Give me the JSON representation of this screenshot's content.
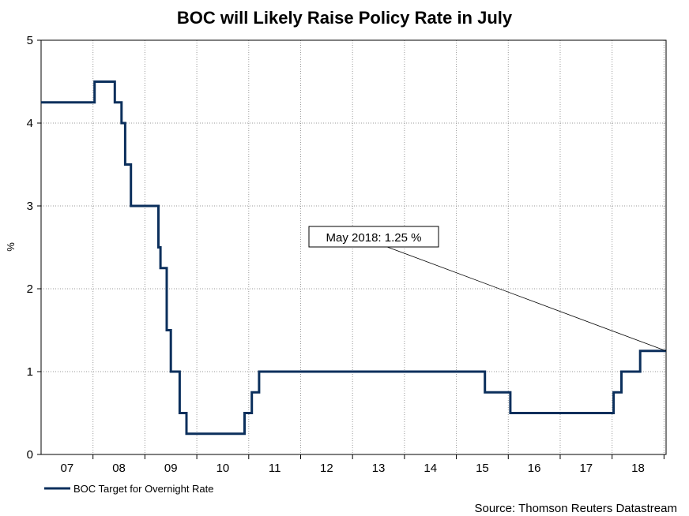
{
  "chart_data": {
    "type": "line",
    "title": "BOC will Likely Raise Policy Rate in July",
    "ylabel": "%",
    "xlabel": "",
    "ylim": [
      0,
      5
    ],
    "xlim": [
      2006.5,
      2018.54
    ],
    "y_ticks": [
      "0",
      "1",
      "2",
      "3",
      "4",
      "5"
    ],
    "x_ticks": [
      {
        "label": "07",
        "x": 2007.0
      },
      {
        "label": "08",
        "x": 2008.0
      },
      {
        "label": "09",
        "x": 2009.0
      },
      {
        "label": "10",
        "x": 2010.0
      },
      {
        "label": "11",
        "x": 2011.0
      },
      {
        "label": "12",
        "x": 2012.0
      },
      {
        "label": "13",
        "x": 2013.0
      },
      {
        "label": "14",
        "x": 2014.0
      },
      {
        "label": "15",
        "x": 2015.0
      },
      {
        "label": "16",
        "x": 2016.0
      },
      {
        "label": "17",
        "x": 2017.0
      },
      {
        "label": "18",
        "x": 2018.0
      }
    ],
    "grid": true,
    "legend_position": "bottom-left",
    "series": [
      {
        "name": "BOC Target for Overnight Rate",
        "color": "#0b2f5c",
        "step": true,
        "points": [
          [
            2006.5,
            4.25
          ],
          [
            2007.53,
            4.5
          ],
          [
            2007.92,
            4.25
          ],
          [
            2008.05,
            4.0
          ],
          [
            2008.12,
            3.5
          ],
          [
            2008.23,
            3.0
          ],
          [
            2008.76,
            2.5
          ],
          [
            2008.8,
            2.25
          ],
          [
            2008.92,
            1.5
          ],
          [
            2009.0,
            1.0
          ],
          [
            2009.17,
            0.5
          ],
          [
            2009.3,
            0.25
          ],
          [
            2010.42,
            0.5
          ],
          [
            2010.56,
            0.75
          ],
          [
            2010.7,
            1.0
          ],
          [
            2015.05,
            0.75
          ],
          [
            2015.54,
            0.5
          ],
          [
            2017.53,
            0.75
          ],
          [
            2017.68,
            1.0
          ],
          [
            2018.04,
            1.25
          ],
          [
            2018.54,
            1.25
          ]
        ]
      }
    ],
    "annotations": [
      {
        "text": "May 2018: 1.25 %",
        "target_x": 2018.54,
        "target_y": 1.25
      }
    ],
    "source": "Source: Thomson Reuters Datastream"
  }
}
